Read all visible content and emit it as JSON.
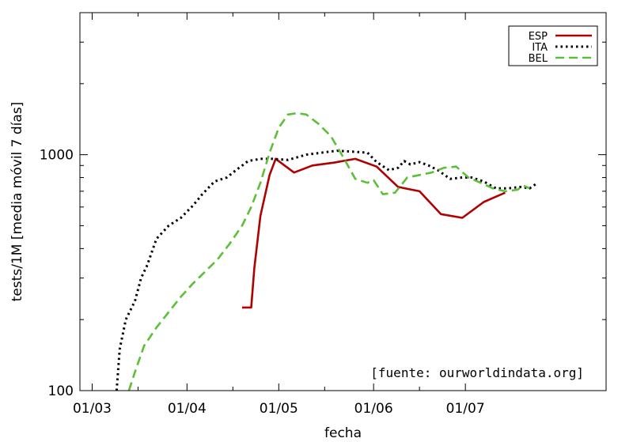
{
  "chart_data": {
    "type": "line",
    "xlabel": "fecha",
    "ylabel": "tests/1M [media móvil 7 días]",
    "y_scale": "log",
    "ylim": [
      100,
      4000
    ],
    "x_axis": {
      "start": "2020-02-26",
      "end": "2020-08-16"
    },
    "x_ticks": [
      {
        "date": "2020-03-01",
        "label": "01/03"
      },
      {
        "date": "2020-04-01",
        "label": "01/04"
      },
      {
        "date": "2020-05-01",
        "label": "01/05"
      },
      {
        "date": "2020-06-01",
        "label": "01/06"
      },
      {
        "date": "2020-07-01",
        "label": "01/07"
      }
    ],
    "y_ticks": [
      {
        "value": 100,
        "label": "100"
      },
      {
        "value": 1000,
        "label": "1000"
      }
    ],
    "legend": {
      "position": "top-right"
    },
    "annotation": "[fuente: ourworldindata.org]",
    "series": [
      {
        "name": "ESP",
        "color": "#b00000",
        "style": "solid",
        "points": [
          [
            "2020-04-19",
            225
          ],
          [
            "2020-04-22",
            225
          ],
          [
            "2020-04-23",
            330
          ],
          [
            "2020-04-25",
            550
          ],
          [
            "2020-04-28",
            820
          ],
          [
            "2020-04-30",
            960
          ],
          [
            "2020-05-06",
            840
          ],
          [
            "2020-05-12",
            900
          ],
          [
            "2020-05-19",
            925
          ],
          [
            "2020-05-26",
            960
          ],
          [
            "2020-06-02",
            890
          ],
          [
            "2020-06-09",
            730
          ],
          [
            "2020-06-16",
            700
          ],
          [
            "2020-06-23",
            560
          ],
          [
            "2020-06-30",
            540
          ],
          [
            "2020-07-07",
            630
          ],
          [
            "2020-07-14",
            690
          ]
        ]
      },
      {
        "name": "ITA",
        "color": "#000000",
        "style": "dotted",
        "points": [
          [
            "2020-03-09",
            100
          ],
          [
            "2020-03-10",
            150
          ],
          [
            "2020-03-12",
            200
          ],
          [
            "2020-03-15",
            240
          ],
          [
            "2020-03-17",
            300
          ],
          [
            "2020-03-19",
            340
          ],
          [
            "2020-03-22",
            440
          ],
          [
            "2020-03-26",
            500
          ],
          [
            "2020-03-30",
            540
          ],
          [
            "2020-04-03",
            610
          ],
          [
            "2020-04-06",
            680
          ],
          [
            "2020-04-10",
            770
          ],
          [
            "2020-04-14",
            800
          ],
          [
            "2020-04-17",
            860
          ],
          [
            "2020-04-21",
            940
          ],
          [
            "2020-04-25",
            960
          ],
          [
            "2020-04-29",
            960
          ],
          [
            "2020-05-04",
            950
          ],
          [
            "2020-05-10",
            1000
          ],
          [
            "2020-05-15",
            1020
          ],
          [
            "2020-05-20",
            1040
          ],
          [
            "2020-05-25",
            1030
          ],
          [
            "2020-05-30",
            1020
          ],
          [
            "2020-06-02",
            930
          ],
          [
            "2020-06-06",
            860
          ],
          [
            "2020-06-09",
            880
          ],
          [
            "2020-06-11",
            940
          ],
          [
            "2020-06-13",
            910
          ],
          [
            "2020-06-16",
            930
          ],
          [
            "2020-06-19",
            900
          ],
          [
            "2020-06-22",
            860
          ],
          [
            "2020-06-26",
            790
          ],
          [
            "2020-06-30",
            800
          ],
          [
            "2020-07-03",
            800
          ],
          [
            "2020-07-07",
            770
          ],
          [
            "2020-07-11",
            720
          ],
          [
            "2020-07-15",
            720
          ],
          [
            "2020-07-19",
            730
          ],
          [
            "2020-07-22",
            720
          ],
          [
            "2020-07-24",
            750
          ]
        ]
      },
      {
        "name": "BEL",
        "color": "#5cbf3a",
        "style": "dashed",
        "points": [
          [
            "2020-03-13",
            100
          ],
          [
            "2020-03-15",
            120
          ],
          [
            "2020-03-18",
            155
          ],
          [
            "2020-03-22",
            185
          ],
          [
            "2020-03-26",
            215
          ],
          [
            "2020-03-30",
            250
          ],
          [
            "2020-04-03",
            285
          ],
          [
            "2020-04-07",
            320
          ],
          [
            "2020-04-11",
            360
          ],
          [
            "2020-04-15",
            420
          ],
          [
            "2020-04-19",
            500
          ],
          [
            "2020-04-22",
            600
          ],
          [
            "2020-04-25",
            760
          ],
          [
            "2020-04-28",
            1020
          ],
          [
            "2020-05-01",
            1300
          ],
          [
            "2020-05-04",
            1480
          ],
          [
            "2020-05-07",
            1500
          ],
          [
            "2020-05-10",
            1480
          ],
          [
            "2020-05-14",
            1350
          ],
          [
            "2020-05-18",
            1200
          ],
          [
            "2020-05-22",
            980
          ],
          [
            "2020-05-26",
            790
          ],
          [
            "2020-05-30",
            760
          ],
          [
            "2020-06-01",
            780
          ],
          [
            "2020-06-04",
            680
          ],
          [
            "2020-06-08",
            690
          ],
          [
            "2020-06-12",
            800
          ],
          [
            "2020-06-16",
            820
          ],
          [
            "2020-06-20",
            840
          ],
          [
            "2020-06-24",
            880
          ],
          [
            "2020-06-28",
            890
          ],
          [
            "2020-07-02",
            800
          ],
          [
            "2020-07-06",
            760
          ],
          [
            "2020-07-10",
            720
          ],
          [
            "2020-07-14",
            700
          ],
          [
            "2020-07-18",
            710
          ],
          [
            "2020-07-20",
            740
          ],
          [
            "2020-07-22",
            720
          ]
        ]
      }
    ]
  }
}
